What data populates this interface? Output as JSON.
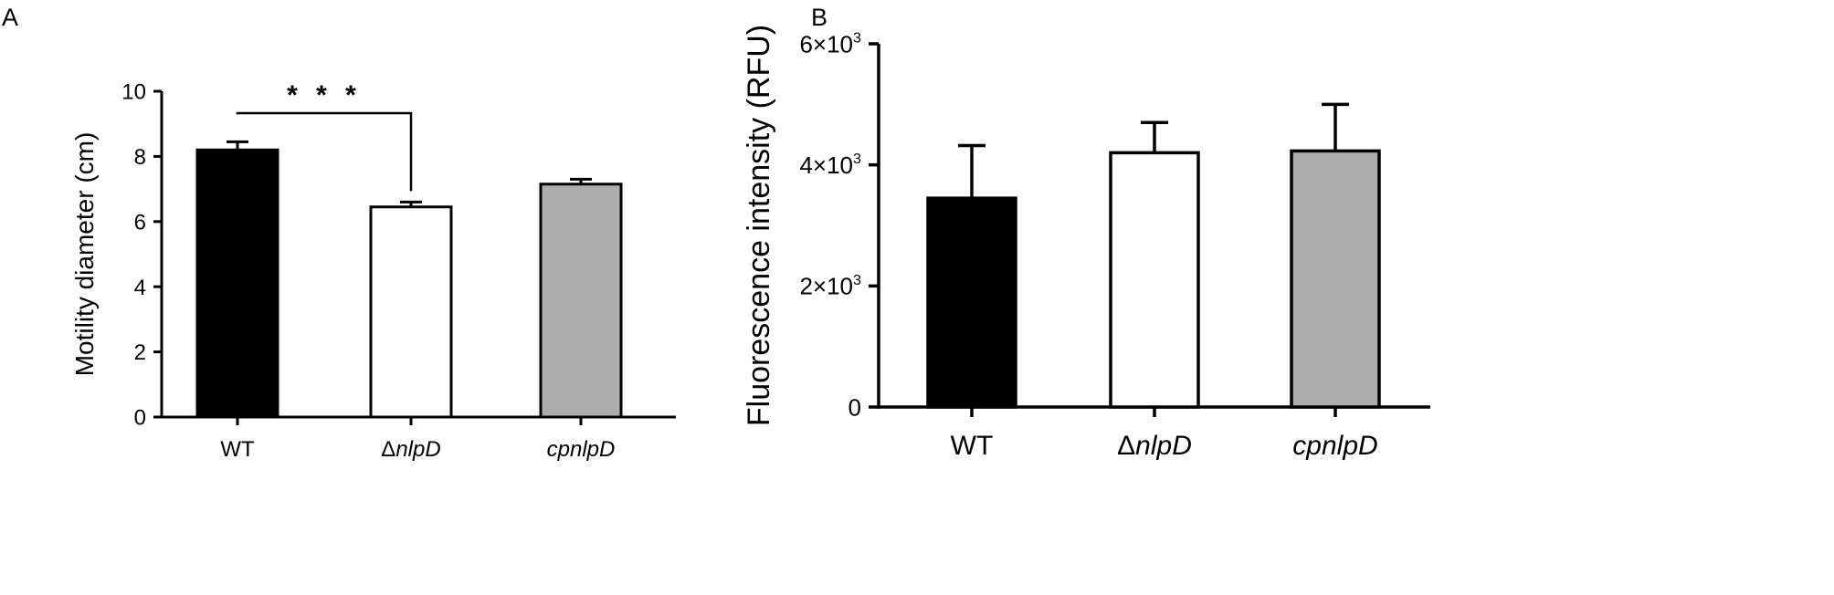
{
  "panels": [
    {
      "letter": "A",
      "chart_data": {
        "type": "bar",
        "categories": [
          "WT",
          "ΔnlpD",
          "cpnlpD"
        ],
        "category_parts": [
          [
            {
              "text": "WT",
              "italic": false
            }
          ],
          [
            {
              "text": "Δ",
              "italic": false
            },
            {
              "text": "nlpD",
              "italic": true
            }
          ],
          [
            {
              "text": "cpnlpD",
              "italic": true
            }
          ]
        ],
        "values": [
          8.2,
          6.45,
          7.15
        ],
        "errors": [
          0.25,
          0.15,
          0.15
        ],
        "colors": [
          "#000000",
          "#ffffff",
          "#adadad"
        ],
        "ylabel": "Motility diameter (cm)",
        "xlabel": "",
        "ylim": [
          0,
          10
        ],
        "yticks": [
          0,
          2,
          4,
          6,
          8,
          10
        ],
        "ytick_labels": [
          "0",
          "2",
          "4",
          "6",
          "8",
          "10"
        ],
        "significance": {
          "from": 0,
          "to": 1,
          "label": "* * *"
        },
        "grid": false
      }
    },
    {
      "letter": "B",
      "chart_data": {
        "type": "bar",
        "categories": [
          "WT",
          "ΔnlpD",
          "cpnlpD"
        ],
        "category_parts": [
          [
            {
              "text": "WT",
              "italic": false
            }
          ],
          [
            {
              "text": "Δ",
              "italic": false
            },
            {
              "text": "nlpD",
              "italic": true
            }
          ],
          [
            {
              "text": "cpnlpD",
              "italic": true
            }
          ]
        ],
        "values": [
          3450,
          4200,
          4230
        ],
        "errors": [
          870,
          500,
          770
        ],
        "colors": [
          "#000000",
          "#ffffff",
          "#adadad"
        ],
        "ylabel": "Fluorescence intensity (RFU)",
        "xlabel": "",
        "ylim": [
          0,
          6000
        ],
        "yticks": [
          0,
          2000,
          4000,
          6000
        ],
        "ytick_labels": [
          {
            "base": "0",
            "exp": ""
          },
          {
            "base": "2×10",
            "exp": "3"
          },
          {
            "base": "4×10",
            "exp": "3"
          },
          {
            "base": "6×10",
            "exp": "3"
          }
        ],
        "grid": false
      }
    }
  ]
}
